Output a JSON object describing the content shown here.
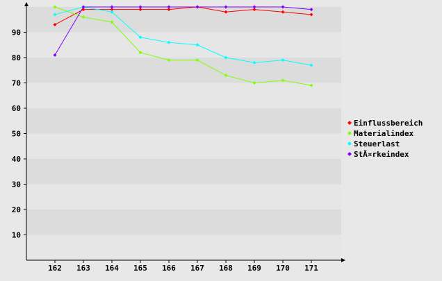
{
  "chart_data": {
    "type": "line",
    "x": [
      "162",
      "163",
      "164",
      "165",
      "166",
      "167",
      "168",
      "169",
      "170",
      "171"
    ],
    "ylim": [
      0,
      100
    ],
    "yticks": [
      10,
      20,
      30,
      40,
      50,
      60,
      70,
      80,
      90
    ],
    "grid": "horizontal bands",
    "legend_position": "right",
    "series": [
      {
        "name": "Einflussbereich",
        "color": "#ff0000",
        "values": [
          93,
          99,
          99,
          99,
          99,
          100,
          98,
          99,
          98,
          97
        ]
      },
      {
        "name": "Materialindex",
        "color": "#80ff00",
        "values": [
          100,
          96,
          94,
          82,
          79,
          79,
          73,
          70,
          71,
          69
        ]
      },
      {
        "name": "Steuerlast",
        "color": "#00ffff",
        "values": [
          97,
          100,
          98,
          88,
          86,
          85,
          80,
          78,
          79,
          77
        ]
      },
      {
        "name": "StÃ¤rkeindex",
        "color": "#8000ff",
        "values": [
          81,
          100,
          100,
          100,
          100,
          100,
          100,
          100,
          100,
          99
        ]
      }
    ]
  }
}
